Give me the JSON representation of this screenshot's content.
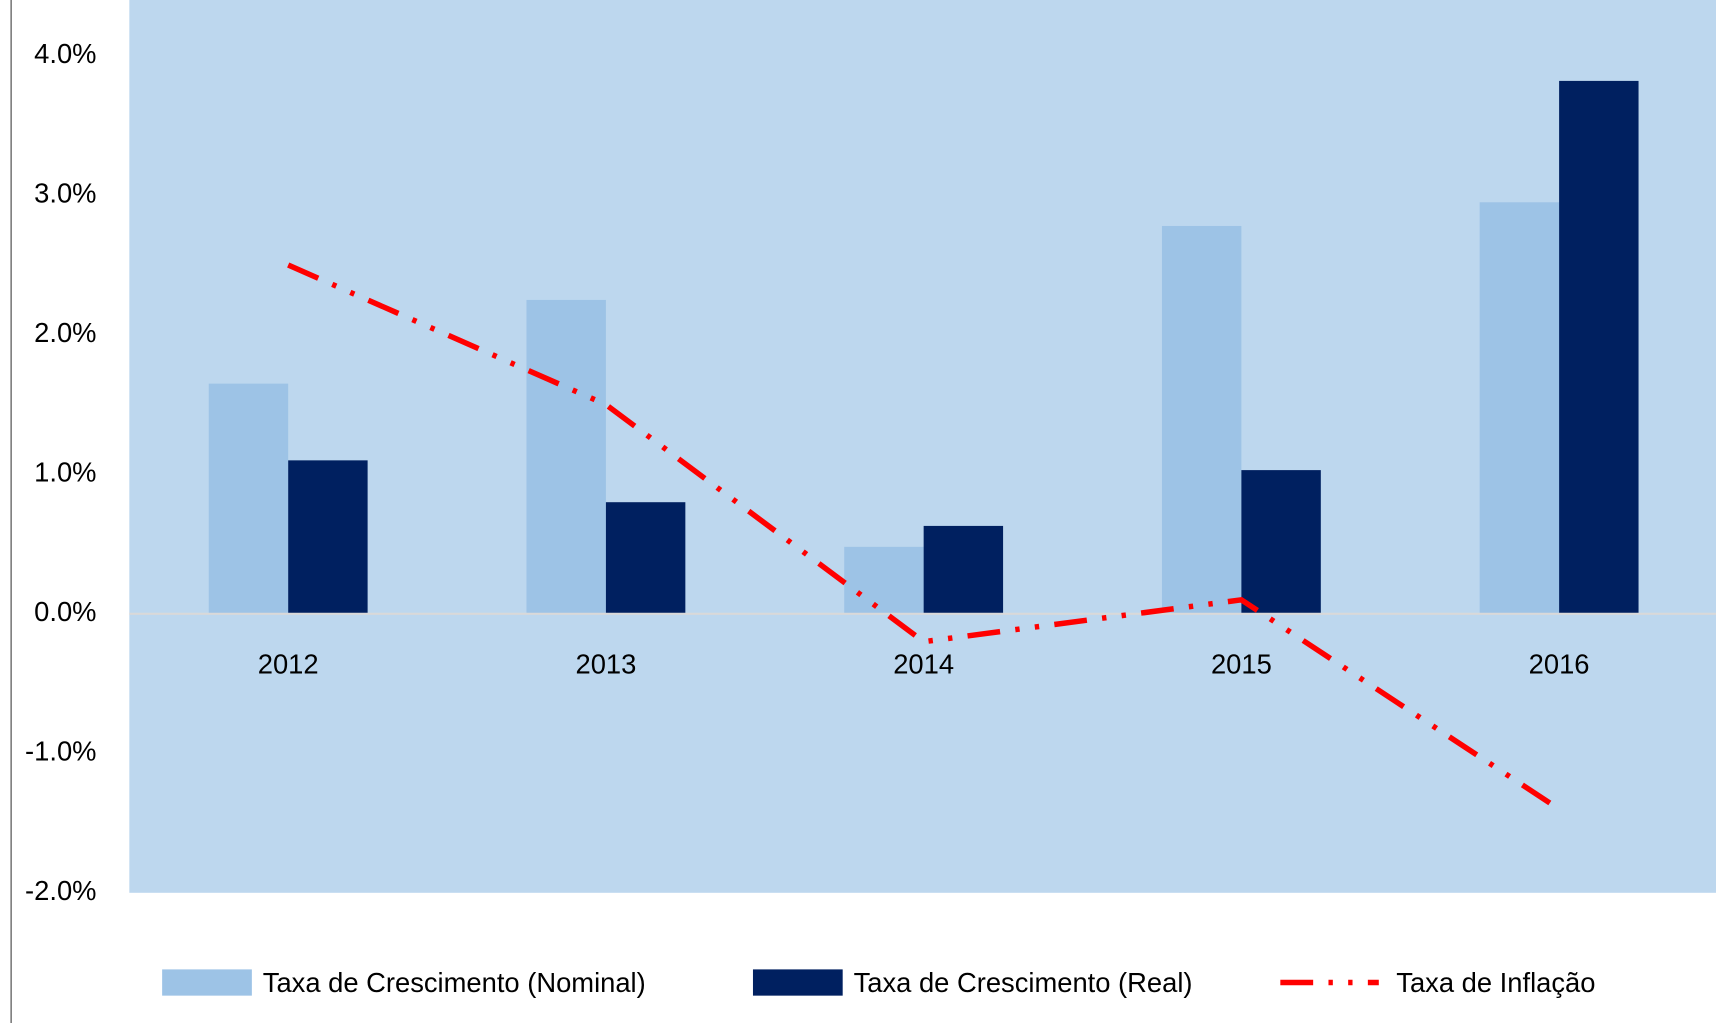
{
  "chart_data": {
    "type": "bar",
    "categories": [
      "2012",
      "2013",
      "2014",
      "2015",
      "2016"
    ],
    "series": [
      {
        "name": "Taxa de Crescimento (Nominal)",
        "color": "#9dc3e6",
        "type": "bar",
        "values": [
          1.65,
          2.25,
          0.48,
          2.78,
          2.95
        ]
      },
      {
        "name": "Taxa de Crescimento (Real)",
        "color": "#002060",
        "type": "bar",
        "values": [
          1.1,
          0.8,
          0.63,
          1.03,
          3.82
        ]
      },
      {
        "name": "Taxa de Inflação",
        "color": "#ff0000",
        "type": "line",
        "values": [
          2.5,
          1.5,
          -0.2,
          0.1,
          -1.4
        ]
      }
    ],
    "ylim": [
      -2,
      4.4
    ],
    "yticks": [
      {
        "value": -2,
        "label": "-2.0%"
      },
      {
        "value": -1,
        "label": "-1.0%"
      },
      {
        "value": 0,
        "label": "0.0%"
      },
      {
        "value": 1,
        "label": "1.0%"
      },
      {
        "value": 2,
        "label": "2.0%"
      },
      {
        "value": 3,
        "label": "3.0%"
      },
      {
        "value": 4,
        "label": "4.0%"
      }
    ],
    "plot_background": "#bdd7ee",
    "legend": "bottom"
  }
}
